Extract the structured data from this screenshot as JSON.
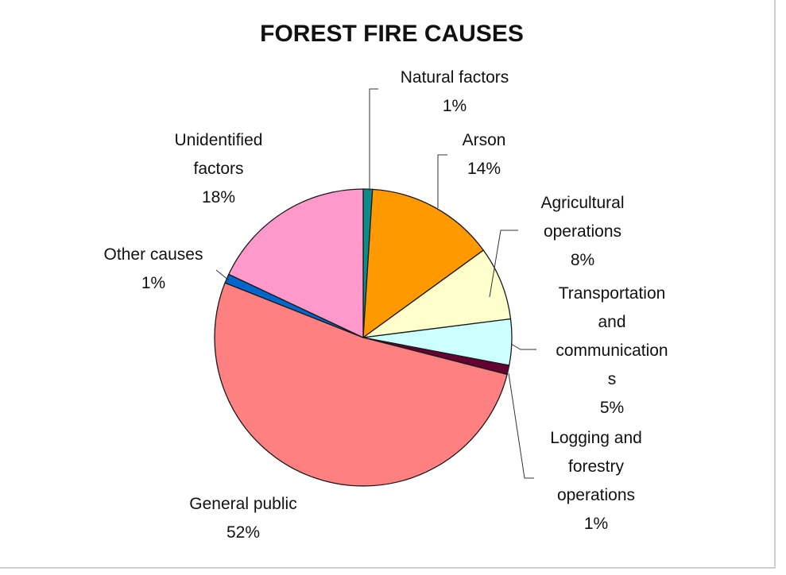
{
  "chart_data": {
    "type": "pie",
    "title": "FOREST FIRE CAUSES",
    "categories": [
      "Natural factors",
      "Arson",
      "Agricultural operations",
      "Transportation and communications",
      "Logging and forestry operations",
      "General public",
      "Other causes",
      "Unidentified factors"
    ],
    "values": [
      1,
      14,
      8,
      5,
      1,
      52,
      1,
      18
    ],
    "value_labels": [
      "1%",
      "14%",
      "8%",
      "5%",
      "1%",
      "52%",
      "1%",
      "18%"
    ],
    "label_lines": [
      [
        "Natural factors",
        "1%"
      ],
      [
        "Arson",
        "14%"
      ],
      [
        "Agricultural",
        "operations",
        "8%"
      ],
      [
        "Transportation",
        "and",
        "communication",
        "s",
        "5%"
      ],
      [
        "Logging and",
        "forestry",
        "operations",
        "1%"
      ],
      [
        "General public",
        "52%"
      ],
      [
        "Other causes",
        "1%"
      ],
      [
        "Unidentified",
        "factors",
        "18%"
      ]
    ],
    "colors": [
      "#0e8c8c",
      "#ff9900",
      "#ffffcc",
      "#ccffff",
      "#660033",
      "#ff8080",
      "#0066cc",
      "#ff99cc"
    ],
    "legend": "none"
  }
}
